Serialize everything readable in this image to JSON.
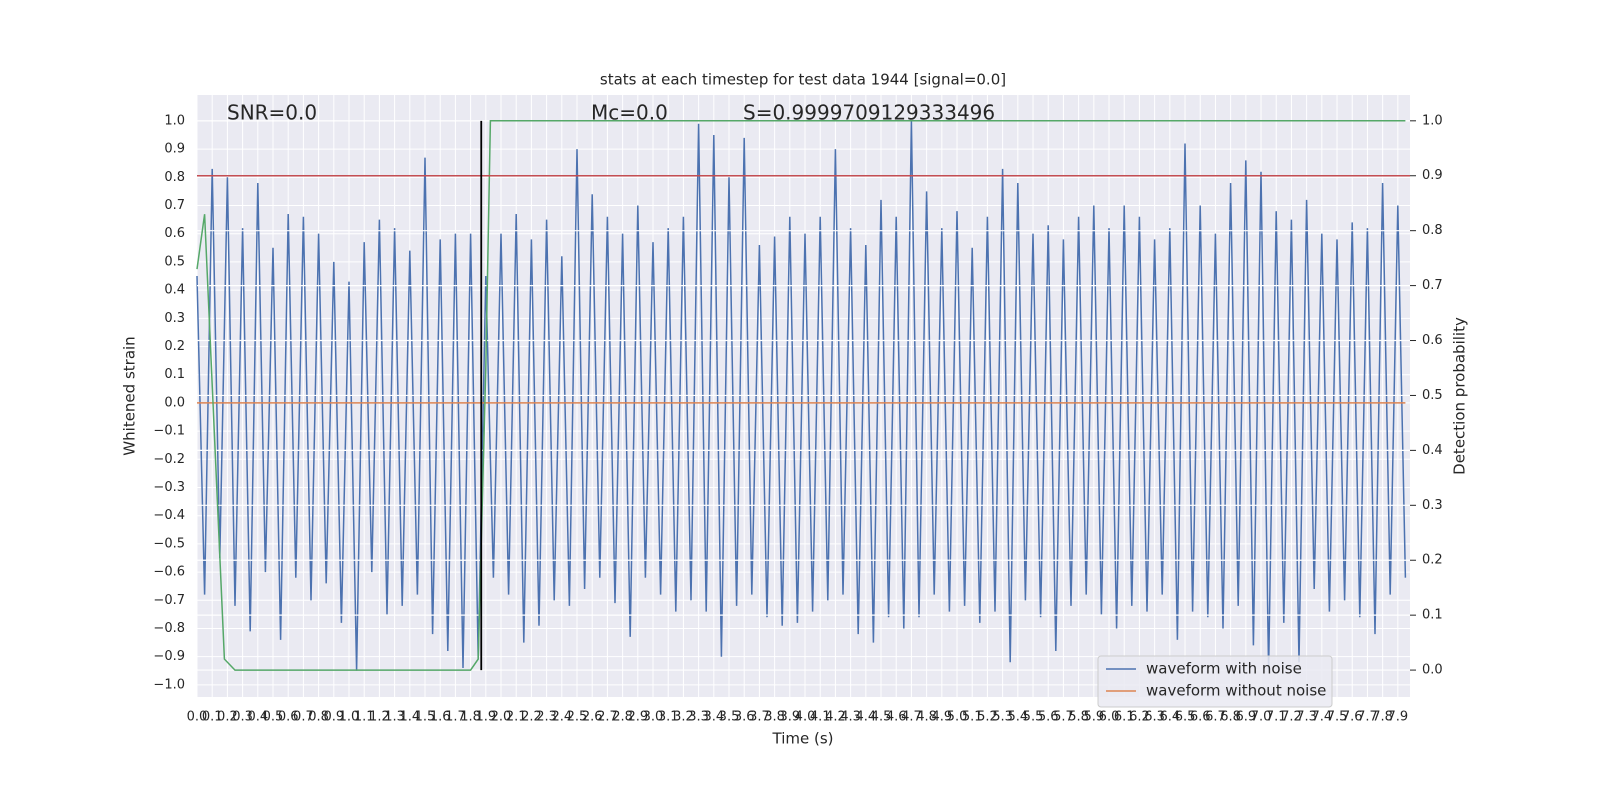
{
  "chart_data": {
    "type": "line",
    "title": "stats at each timestep for test data 1944 [signal=0.0]",
    "x_label": "Time (s)",
    "y_label": "Whitened strain",
    "y2_label": "Detection probability",
    "annotations": [
      "SNR=0.0",
      "Mc=0.0",
      "S=0.9999709129333496"
    ],
    "xlim": [
      0,
      7.98
    ],
    "ylim": [
      -1.043,
      1.092
    ],
    "y2lim": [
      -0.049,
      1.047
    ],
    "grid": true,
    "legend": "lower right",
    "xticks": [
      {
        "value": 0,
        "label": "0.0"
      },
      0.1,
      0.2,
      0.3,
      0.4,
      0.5,
      0.6,
      0.7,
      0.8,
      0.9,
      {
        "value": 1,
        "label": "1.0"
      },
      1.1,
      1.2,
      1.3,
      1.4,
      1.5,
      1.6,
      1.7,
      1.8,
      1.9,
      {
        "value": 2,
        "label": "2.0"
      },
      2.1,
      2.2,
      2.3,
      2.4,
      2.5,
      2.6,
      2.7,
      2.8,
      2.9,
      {
        "value": 3,
        "label": "3.0"
      },
      3.1,
      3.2,
      3.3,
      3.4,
      3.5,
      3.6,
      3.7,
      3.8,
      3.9,
      {
        "value": 4,
        "label": "4.0"
      },
      4.1,
      4.2,
      4.3,
      4.4,
      4.5,
      4.6,
      4.7,
      4.8,
      4.9,
      {
        "value": 5,
        "label": "5.0"
      },
      5.1,
      5.2,
      5.3,
      5.4,
      5.5,
      5.6,
      5.7,
      5.8,
      5.9,
      {
        "value": 6,
        "label": "6.0"
      },
      6.1,
      6.2,
      6.3,
      6.4,
      6.5,
      6.6,
      6.7,
      6.8,
      6.9,
      {
        "value": 7,
        "label": "7.0"
      },
      7.1,
      7.2,
      7.3,
      7.4,
      7.5,
      7.6,
      7.7,
      7.8,
      7.9
    ],
    "yticks": [
      {
        "value": -1,
        "label": "−1.0"
      },
      {
        "value": -0.9,
        "label": "−0.9"
      },
      {
        "value": -0.8,
        "label": "−0.8"
      },
      {
        "value": -0.7,
        "label": "−0.7"
      },
      {
        "value": -0.6,
        "label": "−0.6"
      },
      {
        "value": -0.5,
        "label": "−0.5"
      },
      {
        "value": -0.4,
        "label": "−0.4"
      },
      {
        "value": -0.3,
        "label": "−0.3"
      },
      {
        "value": -0.2,
        "label": "−0.2"
      },
      {
        "value": -0.1,
        "label": "−0.1"
      },
      {
        "value": 0,
        "label": "0.0"
      },
      0.1,
      0.2,
      0.3,
      0.4,
      0.5,
      0.6,
      0.7,
      0.8,
      0.9,
      {
        "value": 1,
        "label": "1.0"
      }
    ],
    "y2ticks": [
      {
        "value": 0,
        "label": "0.0"
      },
      0.1,
      0.2,
      0.3,
      0.4,
      0.5,
      0.6,
      0.7,
      0.8,
      0.9,
      {
        "value": 1,
        "label": "1.0"
      }
    ],
    "series": [
      {
        "name": "waveform with noise",
        "color": "#4c72b0",
        "x": [
          0,
          0.05,
          0.1,
          0.15,
          0.2,
          0.25,
          0.3,
          0.35,
          0.4,
          0.45,
          0.5,
          0.55,
          0.6,
          0.65,
          0.7,
          0.75,
          0.8,
          0.85,
          0.9,
          0.95,
          1,
          1.05,
          1.1,
          1.15,
          1.2,
          1.25,
          1.3,
          1.35,
          1.4,
          1.45,
          1.5,
          1.55,
          1.6,
          1.65,
          1.7,
          1.75,
          1.8,
          1.85,
          1.9,
          1.95,
          2,
          2.05,
          2.1,
          2.15,
          2.2,
          2.25,
          2.3,
          2.35,
          2.4,
          2.45,
          2.5,
          2.55,
          2.6,
          2.65,
          2.7,
          2.75,
          2.8,
          2.85,
          2.9,
          2.95,
          3,
          3.05,
          3.1,
          3.15,
          3.2,
          3.25,
          3.3,
          3.35,
          3.4,
          3.45,
          3.5,
          3.55,
          3.6,
          3.65,
          3.7,
          3.75,
          3.8,
          3.85,
          3.9,
          3.95,
          4,
          4.05,
          4.1,
          4.15,
          4.2,
          4.25,
          4.3,
          4.35,
          4.4,
          4.45,
          4.5,
          4.55,
          4.6,
          4.65,
          4.7,
          4.75,
          4.8,
          4.85,
          4.9,
          4.95,
          5,
          5.05,
          5.1,
          5.15,
          5.2,
          5.25,
          5.3,
          5.35,
          5.4,
          5.45,
          5.5,
          5.55,
          5.6,
          5.65,
          5.7,
          5.75,
          5.8,
          5.85,
          5.9,
          5.95,
          6,
          6.05,
          6.1,
          6.15,
          6.2,
          6.25,
          6.3,
          6.35,
          6.4,
          6.45,
          6.5,
          6.55,
          6.6,
          6.65,
          6.7,
          6.75,
          6.8,
          6.85,
          6.9,
          6.95,
          7,
          7.05,
          7.1,
          7.15,
          7.2,
          7.25,
          7.3,
          7.35,
          7.4,
          7.45,
          7.5,
          7.55,
          7.6,
          7.65,
          7.7,
          7.75,
          7.8,
          7.85,
          7.9,
          7.95
        ],
        "values": [
          0.45,
          -0.68,
          0.83,
          -0.55,
          0.8,
          -0.72,
          0.62,
          -0.81,
          0.78,
          -0.6,
          0.55,
          -0.84,
          0.67,
          -0.62,
          0.66,
          -0.7,
          0.6,
          -0.64,
          0.5,
          -0.78,
          0.43,
          -0.95,
          0.57,
          -0.6,
          0.65,
          -0.75,
          0.62,
          -0.72,
          0.54,
          -0.68,
          0.87,
          -0.82,
          0.58,
          -0.88,
          0.6,
          -0.94,
          0.6,
          -0.91,
          0.45,
          -0.62,
          0.6,
          -0.68,
          0.67,
          -0.85,
          0.58,
          -0.79,
          0.65,
          -0.7,
          0.52,
          -0.72,
          0.9,
          -0.66,
          0.74,
          -0.62,
          0.66,
          -0.71,
          0.6,
          -0.83,
          0.7,
          -0.62,
          0.57,
          -0.68,
          0.62,
          -0.74,
          0.66,
          -0.7,
          0.99,
          -0.74,
          0.95,
          -0.9,
          0.8,
          -0.72,
          0.94,
          -0.68,
          0.56,
          -0.76,
          0.59,
          -0.79,
          0.66,
          -0.78,
          0.6,
          -0.74,
          0.66,
          -0.7,
          0.9,
          -0.68,
          0.62,
          -0.82,
          0.56,
          -0.85,
          0.72,
          -0.76,
          0.66,
          -0.8,
          1.0,
          -0.76,
          0.75,
          -0.68,
          0.62,
          -0.74,
          0.68,
          -0.72,
          0.55,
          -0.78,
          0.66,
          -0.74,
          0.83,
          -0.92,
          0.78,
          -0.7,
          0.6,
          -0.76,
          0.63,
          -0.88,
          0.58,
          -0.72,
          0.66,
          -0.68,
          0.7,
          -0.75,
          0.62,
          -0.8,
          0.7,
          -0.72,
          0.66,
          -0.74,
          0.58,
          -0.68,
          0.62,
          -0.84,
          0.92,
          -0.74,
          0.7,
          -0.76,
          0.6,
          -0.8,
          0.78,
          -0.72,
          0.86,
          -0.86,
          0.82,
          -0.95,
          0.68,
          -0.78,
          0.65,
          -0.92,
          0.72,
          -0.66,
          0.6,
          -0.74,
          0.58,
          -0.7,
          0.64,
          -0.76,
          0.62,
          -0.82,
          0.78,
          -0.68,
          0.7,
          -0.62
        ]
      },
      {
        "name": "waveform without noise",
        "color": "#dd8452",
        "x": [
          0,
          7.95
        ],
        "values": [
          0,
          0
        ]
      }
    ],
    "detection": {
      "color": "#55a868",
      "axis": "y2",
      "x": [
        0,
        0.05,
        0.18,
        0.25,
        1.8,
        1.85,
        1.9,
        1.93,
        7.95
      ],
      "values": [
        0.73,
        0.83,
        0.02,
        0,
        0,
        0.02,
        0.55,
        1.0,
        1.0
      ]
    },
    "threshold": {
      "value": 0.9,
      "color": "#c44e52",
      "axis": "y2"
    },
    "marker_line": {
      "x": 1.87,
      "color": "#000000"
    }
  }
}
